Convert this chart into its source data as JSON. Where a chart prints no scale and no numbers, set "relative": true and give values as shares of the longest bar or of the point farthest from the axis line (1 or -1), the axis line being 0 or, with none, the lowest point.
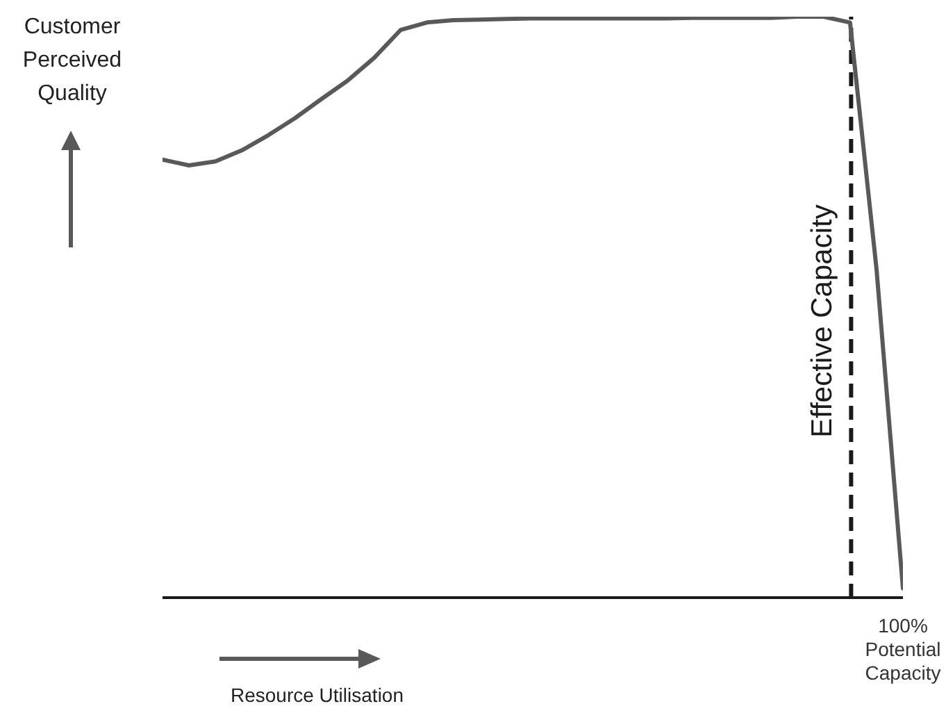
{
  "chart_data": {
    "type": "line",
    "relative": true,
    "xlabel": "Resource Utilisation",
    "ylabel": "Customer Perceived Quality",
    "annotations": [
      "Effective Capacity",
      "100% Potential Capacity"
    ],
    "categories": [
      null,
      null,
      null,
      null,
      null,
      null,
      null,
      null,
      null,
      null,
      null,
      null,
      null,
      null,
      null,
      null,
      null,
      null,
      null,
      null,
      null,
      null,
      null,
      null,
      null,
      null,
      null,
      null,
      null
    ],
    "series": [
      {
        "color": "#595959",
        "values": [
          0.754,
          0.744,
          0.751,
          0.77,
          0.796,
          0.825,
          0.858,
          0.89,
          0.929,
          0.977,
          0.99,
          0.994,
          0.995,
          0.996,
          0.997,
          0.997,
          0.997,
          0.997,
          0.997,
          0.997,
          0.998,
          0.998,
          0.998,
          0.998,
          1,
          1,
          0.99,
          0.566,
          0.016
        ]
      }
    ],
    "grid": false,
    "legend": false,
    "marker": "none",
    "line_style": "solid"
  }
}
